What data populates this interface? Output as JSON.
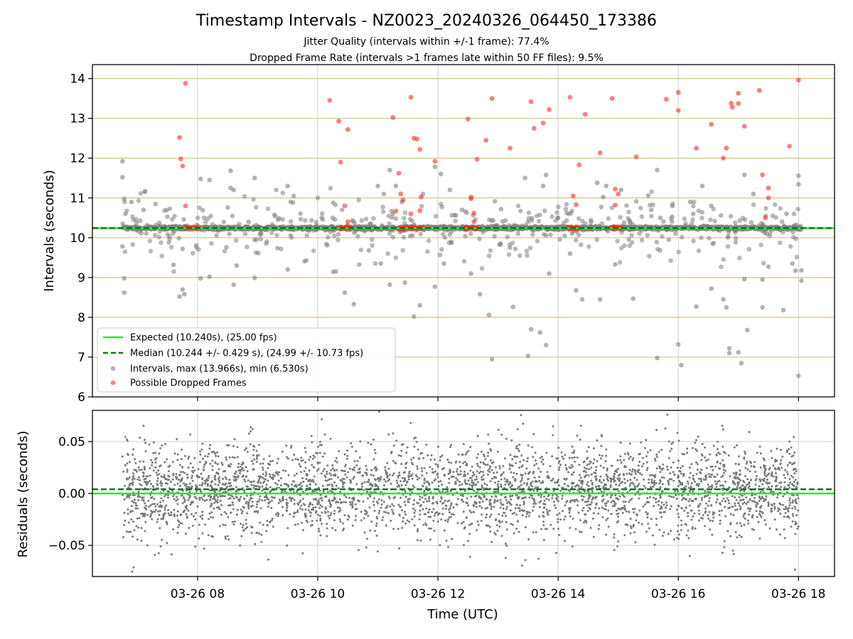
{
  "chart_data": [
    {
      "type": "scatter",
      "title": "Timestamp Intervals - NZ0023_20240326_064450_173386",
      "subtitle_lines": [
        "Jitter Quality (intervals within +/-1 frame): 77.4%",
        "Dropped Frame Rate (intervals >1 frames late within 50 FF files): 9.5%"
      ],
      "ylabel": "Intervals (seconds)",
      "ylim": [
        6,
        14.35
      ],
      "yticks": [
        6,
        7,
        8,
        9,
        10,
        11,
        12,
        13,
        14
      ],
      "xlim_hours": [
        6.25,
        18.6
      ],
      "xticks_hours": [
        8,
        10,
        12,
        14,
        16,
        18
      ],
      "grid": true,
      "frame_gridlines_color": "#d4c28a",
      "legend_position": "lower-left",
      "expected_value": 10.24,
      "median_value": 10.244,
      "series": [
        {
          "name": "Expected (10.240s), (25.00 fps)",
          "kind": "hline",
          "color": "#22ee22",
          "style": "solid"
        },
        {
          "name": "Median (10.244 +/- 0.429 s), (24.99 +/- 10.73 fps)",
          "kind": "hline",
          "color": "#0a7a0a",
          "style": "dashed"
        },
        {
          "name": "Intervals, max (13.966s), min (6.530s)",
          "kind": "points",
          "color": "#808080",
          "outliers": [
            [
              6.75,
              11.92
            ],
            [
              6.75,
              11.52
            ],
            [
              6.78,
              10.98
            ],
            [
              6.8,
              10.6
            ],
            [
              6.75,
              9.78
            ],
            [
              6.78,
              8.98
            ],
            [
              6.78,
              8.62
            ],
            [
              6.9,
              10.9
            ],
            [
              7.1,
              10.7
            ],
            [
              7.3,
              10.85
            ],
            [
              7.45,
              10.25
            ],
            [
              7.6,
              9.32
            ],
            [
              7.7,
              8.52
            ],
            [
              7.75,
              8.7
            ],
            [
              7.78,
              8.58
            ],
            [
              7.75,
              9.72
            ],
            [
              8.05,
              11.48
            ],
            [
              8.05,
              8.98
            ],
            [
              8.2,
              9.02
            ],
            [
              8.2,
              11.45
            ],
            [
              8.55,
              11.68
            ],
            [
              8.55,
              11.25
            ],
            [
              8.6,
              11.2
            ],
            [
              8.6,
              8.82
            ],
            [
              8.65,
              9.3
            ],
            [
              8.95,
              11.5
            ],
            [
              8.95,
              8.99
            ],
            [
              8.85,
              10.4
            ],
            [
              9.5,
              11.3
            ],
            [
              9.55,
              10.9
            ],
            [
              9.5,
              9.2
            ],
            [
              9.6,
              11.05
            ],
            [
              10.0,
              11.0
            ],
            [
              10.25,
              10.5
            ],
            [
              10.3,
              9.15
            ],
            [
              10.45,
              8.62
            ],
            [
              10.6,
              8.33
            ],
            [
              10.85,
              9.68
            ],
            [
              11.0,
              11.3
            ],
            [
              11.1,
              11.1
            ],
            [
              11.2,
              11.7
            ],
            [
              11.3,
              11.3
            ],
            [
              11.25,
              10.6
            ],
            [
              11.05,
              9.35
            ],
            [
              11.2,
              8.82
            ],
            [
              11.4,
              10.9
            ],
            [
              11.45,
              8.87
            ],
            [
              11.75,
              11.1
            ],
            [
              11.7,
              8.3
            ],
            [
              11.6,
              8.02
            ],
            [
              11.95,
              11.78
            ],
            [
              11.95,
              8.77
            ],
            [
              12.05,
              11.6
            ],
            [
              12.2,
              11.2
            ],
            [
              12.1,
              9.35
            ],
            [
              12.4,
              10.7
            ],
            [
              12.55,
              9.1
            ],
            [
              12.7,
              8.58
            ],
            [
              12.85,
              8.06
            ],
            [
              12.9,
              6.95
            ],
            [
              13.05,
              10.72
            ],
            [
              13.2,
              9.75
            ],
            [
              13.25,
              8.26
            ],
            [
              13.45,
              11.5
            ],
            [
              13.5,
              10.4
            ],
            [
              13.55,
              7.7
            ],
            [
              13.7,
              7.62
            ],
            [
              13.8,
              11.58
            ],
            [
              13.75,
              11.3
            ],
            [
              13.5,
              7.03
            ],
            [
              13.8,
              7.3
            ],
            [
              13.85,
              9.1
            ],
            [
              14.0,
              10.5
            ],
            [
              14.2,
              9.6
            ],
            [
              14.3,
              8.68
            ],
            [
              14.4,
              8.45
            ],
            [
              14.55,
              10.4
            ],
            [
              14.65,
              11.38
            ],
            [
              14.7,
              8.45
            ],
            [
              14.75,
              11.02
            ],
            [
              14.8,
              11.3
            ],
            [
              14.95,
              9.33
            ],
            [
              15.05,
              11.2
            ],
            [
              15.2,
              10.4
            ],
            [
              15.25,
              8.47
            ],
            [
              15.5,
              11.06
            ],
            [
              15.55,
              10.7
            ],
            [
              15.65,
              11.7
            ],
            [
              15.65,
              6.98
            ],
            [
              15.7,
              10.5
            ],
            [
              15.9,
              10.8
            ],
            [
              16.0,
              7.32
            ],
            [
              16.05,
              6.8
            ],
            [
              16.2,
              10.9
            ],
            [
              16.25,
              10.6
            ],
            [
              16.3,
              8.27
            ],
            [
              16.4,
              11.3
            ],
            [
              16.55,
              10.8
            ],
            [
              16.55,
              8.72
            ],
            [
              16.75,
              8.45
            ],
            [
              16.8,
              8.25
            ],
            [
              16.85,
              7.22
            ],
            [
              16.85,
              7.1
            ],
            [
              17.0,
              7.12
            ],
            [
              17.05,
              6.85
            ],
            [
              17.1,
              8.96
            ],
            [
              17.1,
              11.58
            ],
            [
              17.15,
              7.68
            ],
            [
              17.25,
              11.1
            ],
            [
              17.4,
              8.25
            ],
            [
              17.4,
              8.95
            ],
            [
              17.5,
              9.27
            ],
            [
              17.75,
              8.18
            ],
            [
              17.8,
              10.6
            ],
            [
              17.9,
              9.35
            ],
            [
              17.95,
              9.17
            ],
            [
              18.0,
              11.34
            ],
            [
              18.0,
              11.56
            ],
            [
              18.05,
              9.18
            ],
            [
              18.05,
              8.92
            ],
            [
              18.0,
              6.53
            ]
          ]
        },
        {
          "name": "Possible Dropped Frames",
          "kind": "points",
          "color": "#ff2a2a",
          "points": [
            [
              7.7,
              12.52
            ],
            [
              7.72,
              11.98
            ],
            [
              7.75,
              11.8
            ],
            [
              7.8,
              13.88
            ],
            [
              7.8,
              10.8
            ],
            [
              10.2,
              13.45
            ],
            [
              10.35,
              12.93
            ],
            [
              10.38,
              11.9
            ],
            [
              10.5,
              12.72
            ],
            [
              10.45,
              10.8
            ],
            [
              10.5,
              10.4
            ],
            [
              11.25,
              13.02
            ],
            [
              11.35,
              11.62
            ],
            [
              11.38,
              11.1
            ],
            [
              11.42,
              10.95
            ],
            [
              11.3,
              10.67
            ],
            [
              11.55,
              13.53
            ],
            [
              11.6,
              12.5
            ],
            [
              11.65,
              12.48
            ],
            [
              11.7,
              12.22
            ],
            [
              11.72,
              11.02
            ],
            [
              11.7,
              10.68
            ],
            [
              11.55,
              10.6
            ],
            [
              11.95,
              11.92
            ],
            [
              12.5,
              12.98
            ],
            [
              12.55,
              11.02
            ],
            [
              12.55,
              10.98
            ],
            [
              12.6,
              10.62
            ],
            [
              12.6,
              10.4
            ],
            [
              12.65,
              11.97
            ],
            [
              12.8,
              12.45
            ],
            [
              12.9,
              13.5
            ],
            [
              13.2,
              12.25
            ],
            [
              13.55,
              13.42
            ],
            [
              13.6,
              12.75
            ],
            [
              13.75,
              12.88
            ],
            [
              13.85,
              13.22
            ],
            [
              14.2,
              13.53
            ],
            [
              14.25,
              11.05
            ],
            [
              14.3,
              10.83
            ],
            [
              14.35,
              11.83
            ],
            [
              14.45,
              13.1
            ],
            [
              14.7,
              12.13
            ],
            [
              14.9,
              13.5
            ],
            [
              14.95,
              11.22
            ],
            [
              15.0,
              11.1
            ],
            [
              14.95,
              10.82
            ],
            [
              15.3,
              12.03
            ],
            [
              15.8,
              13.48
            ],
            [
              16.0,
              13.65
            ],
            [
              16.0,
              13.2
            ],
            [
              16.3,
              12.25
            ],
            [
              16.55,
              12.85
            ],
            [
              16.75,
              12.0
            ],
            [
              16.8,
              12.25
            ],
            [
              16.88,
              13.38
            ],
            [
              16.9,
              13.28
            ],
            [
              17.0,
              13.63
            ],
            [
              17.0,
              13.37
            ],
            [
              17.1,
              12.8
            ],
            [
              17.35,
              13.7
            ],
            [
              17.4,
              11.58
            ],
            [
              17.45,
              10.5
            ],
            [
              17.5,
              11.25
            ],
            [
              17.5,
              11.0
            ],
            [
              17.85,
              12.3
            ],
            [
              18.0,
              13.96
            ]
          ],
          "clusters_hours": [
            7.9,
            10.45,
            11.45,
            11.65,
            12.55,
            14.25,
            14.95
          ]
        }
      ]
    },
    {
      "type": "scatter",
      "xlabel": "Time (UTC)",
      "ylabel": "Residuals (seconds)",
      "ylim": [
        -0.08,
        0.08
      ],
      "yticks": [
        -0.05,
        0.0,
        0.05
      ],
      "ytick_labels": [
        "−0.05",
        "0.00",
        "0.05"
      ],
      "xlim_hours": [
        6.25,
        18.6
      ],
      "xticks_hours": [
        8,
        10,
        12,
        14,
        16,
        18
      ],
      "xtick_labels": [
        "03-26 08",
        "03-26 10",
        "03-26 12",
        "03-26 14",
        "03-26 16",
        "03-26 18"
      ],
      "grid": true,
      "expected_value": 0.0,
      "median_value": 0.004,
      "residual_spread_sd": 0.022,
      "point_color": "#7a7a7a",
      "points_count": 3600
    }
  ]
}
